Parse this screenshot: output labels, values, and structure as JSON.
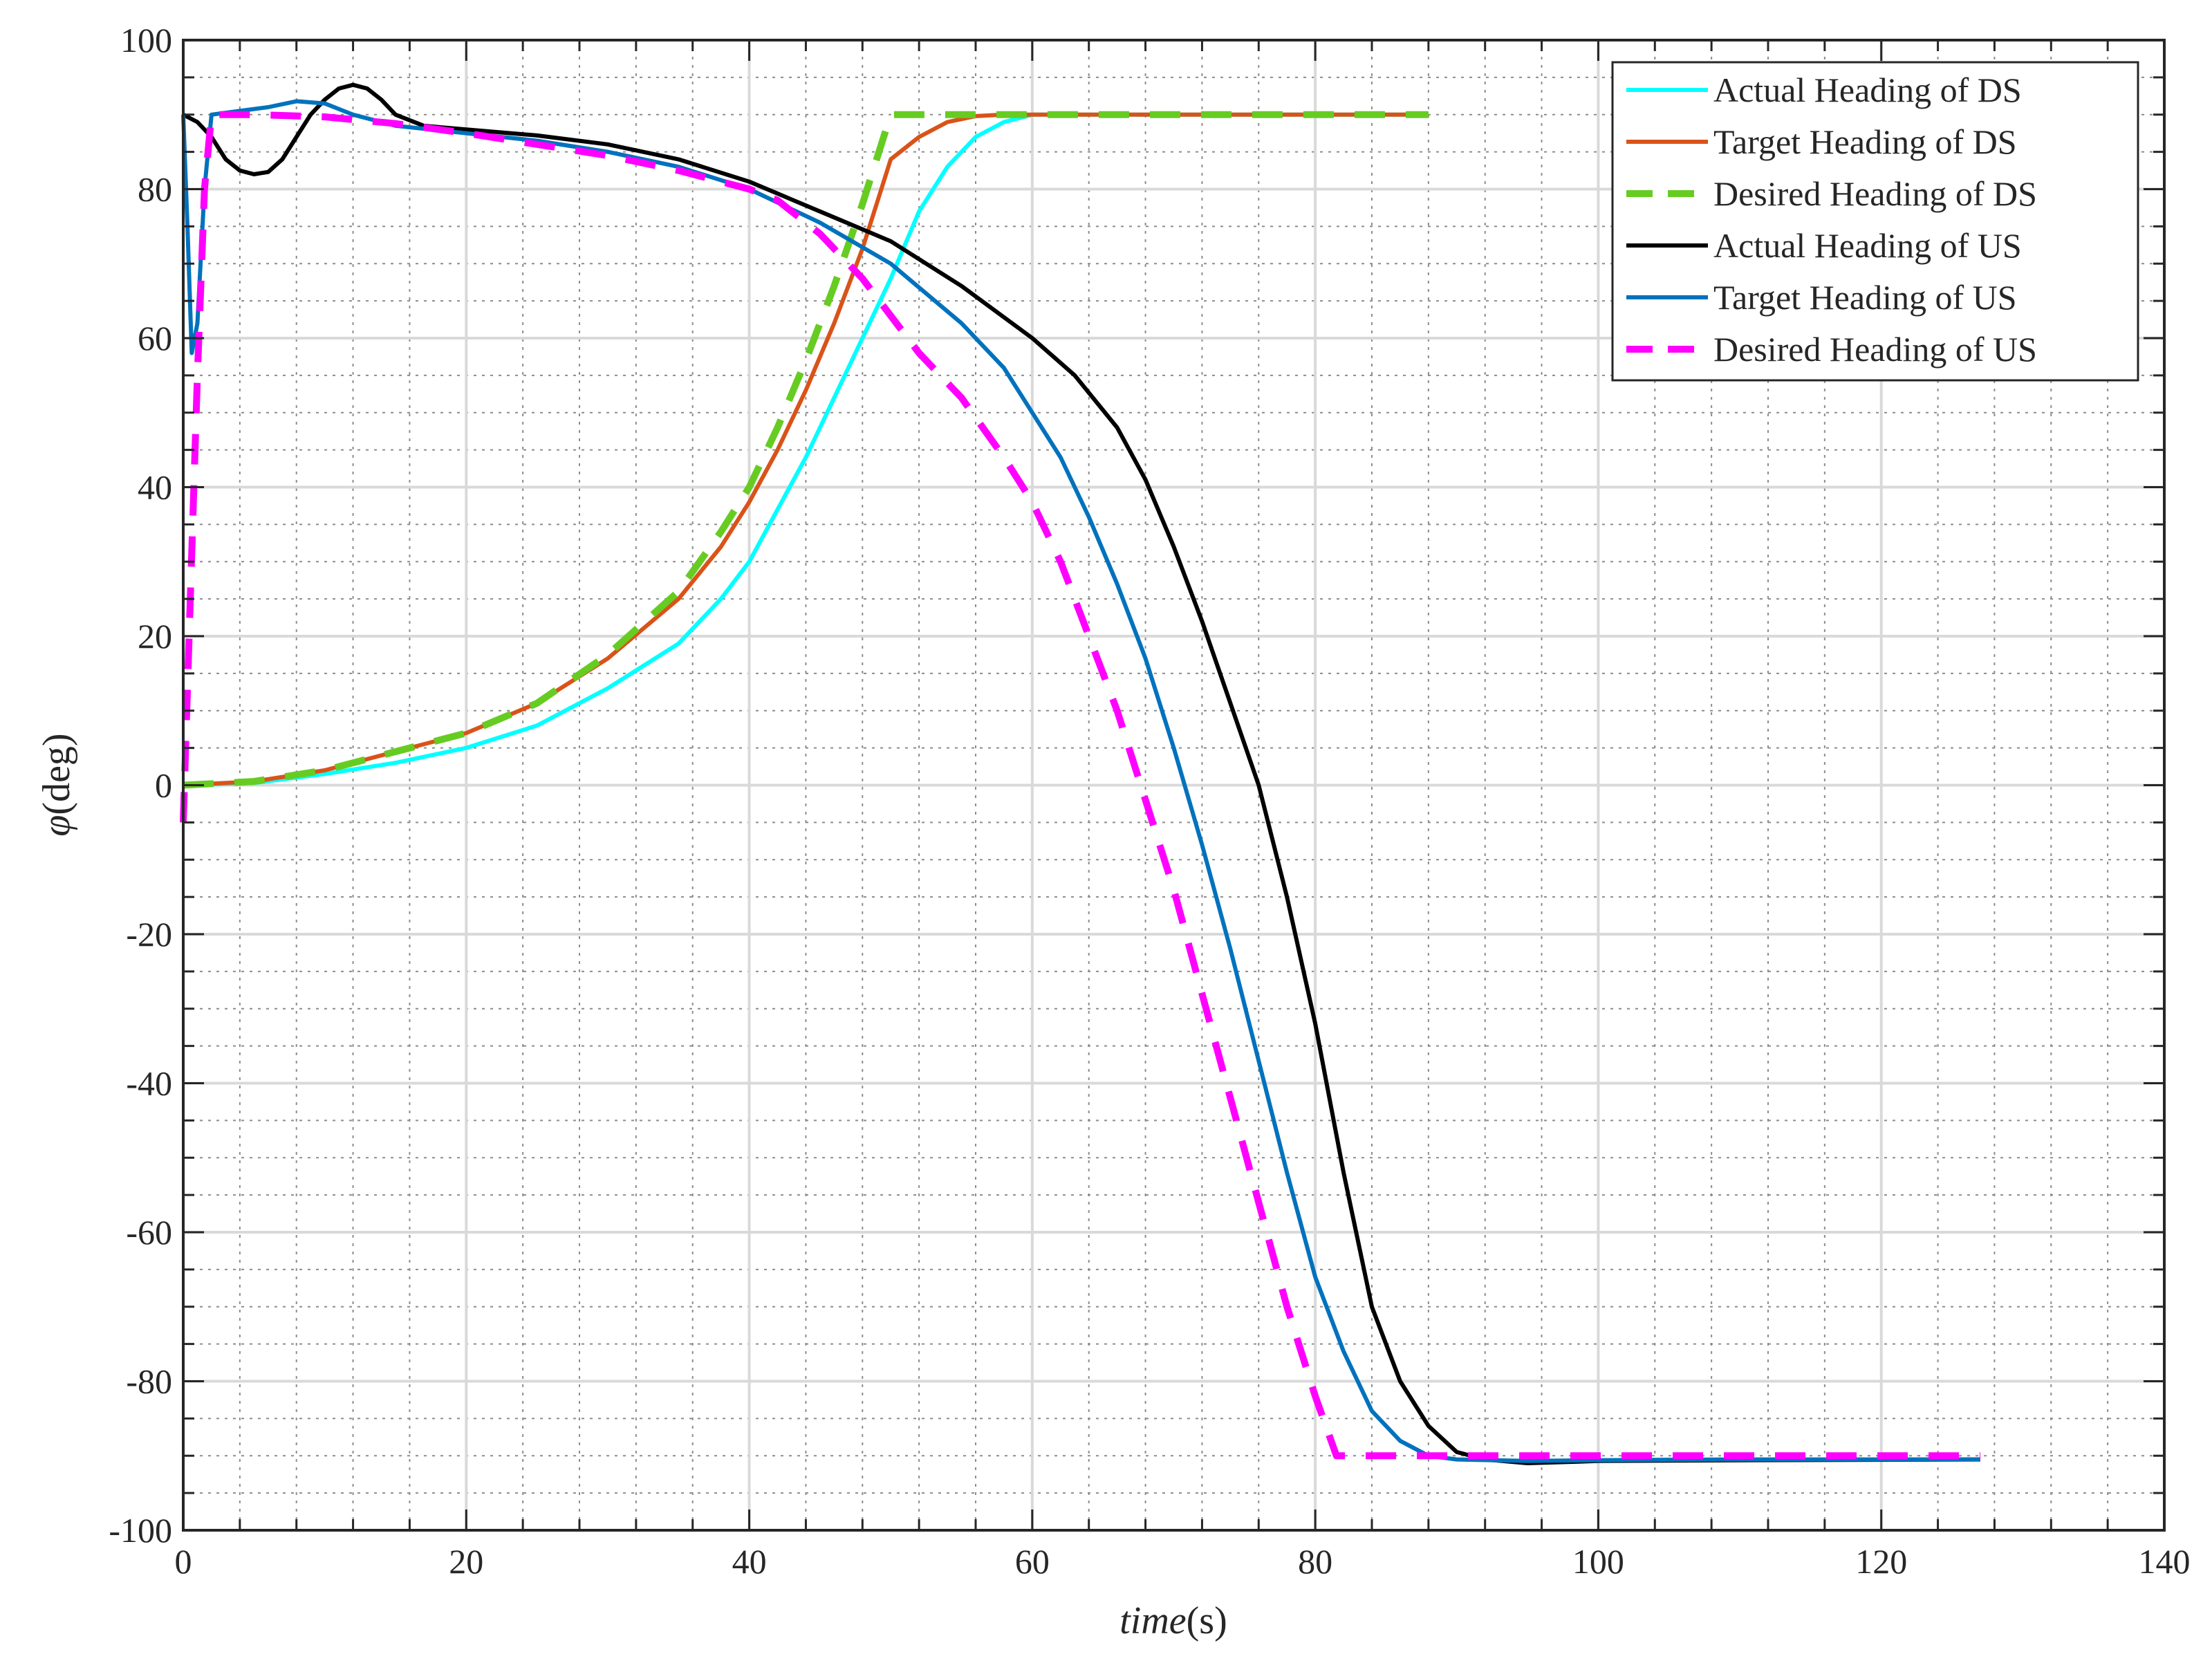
{
  "chart_data": {
    "type": "line",
    "title": "",
    "xlabel": {
      "italic": "time",
      "plain": "(s)"
    },
    "ylabel": {
      "symbol": "φ",
      "plain": "(deg)"
    },
    "xlim": [
      0,
      140
    ],
    "ylim": [
      -100,
      100
    ],
    "x_ticks": [
      0,
      20,
      40,
      60,
      80,
      100,
      120,
      140
    ],
    "y_ticks": [
      -100,
      -80,
      -60,
      -40,
      -20,
      0,
      20,
      40,
      60,
      80,
      100
    ],
    "x_tick_labels": [
      "0",
      "20",
      "40",
      "60",
      "80",
      "100",
      "120",
      "140"
    ],
    "y_tick_labels": [
      "-100",
      "-80",
      "-60",
      "-40",
      "-20",
      "0",
      "20",
      "40",
      "60",
      "80",
      "100"
    ],
    "grid": {
      "major": true,
      "minor": true
    },
    "legend_position": "top-right",
    "series": [
      {
        "name": "Actual Heading of DS",
        "color": "#00ffff",
        "style": "solid",
        "points": [
          [
            0,
            0
          ],
          [
            5,
            0.3
          ],
          [
            10,
            1.5
          ],
          [
            15,
            3
          ],
          [
            20,
            5
          ],
          [
            25,
            8
          ],
          [
            30,
            13
          ],
          [
            35,
            19
          ],
          [
            38,
            25
          ],
          [
            40,
            30
          ],
          [
            42,
            37
          ],
          [
            44,
            44
          ],
          [
            46,
            52
          ],
          [
            48,
            60
          ],
          [
            50,
            68
          ],
          [
            52,
            77
          ],
          [
            54,
            83
          ],
          [
            56,
            87
          ],
          [
            58,
            89
          ],
          [
            60,
            90
          ],
          [
            65,
            90
          ],
          [
            70,
            90
          ],
          [
            80,
            90
          ],
          [
            88,
            90
          ]
        ]
      },
      {
        "name": "Target Heading of DS",
        "color": "#d95319",
        "style": "solid",
        "points": [
          [
            0,
            0
          ],
          [
            5,
            0.5
          ],
          [
            10,
            2
          ],
          [
            15,
            4.5
          ],
          [
            20,
            7
          ],
          [
            25,
            11
          ],
          [
            30,
            17
          ],
          [
            35,
            25
          ],
          [
            38,
            32
          ],
          [
            40,
            38
          ],
          [
            42,
            45
          ],
          [
            44,
            53
          ],
          [
            46,
            62
          ],
          [
            48,
            72
          ],
          [
            50,
            84
          ],
          [
            52,
            87
          ],
          [
            54,
            89
          ],
          [
            56,
            89.8
          ],
          [
            58,
            90
          ],
          [
            60,
            90
          ],
          [
            70,
            90
          ],
          [
            80,
            90
          ],
          [
            88,
            90
          ]
        ]
      },
      {
        "name": "Desired Heading of DS",
        "color": "#66cc22",
        "style": "dashed",
        "points": [
          [
            0,
            0
          ],
          [
            5,
            0.5
          ],
          [
            10,
            2
          ],
          [
            15,
            4.5
          ],
          [
            20,
            7
          ],
          [
            25,
            11
          ],
          [
            30,
            17.5
          ],
          [
            35,
            26
          ],
          [
            38,
            34
          ],
          [
            40,
            40
          ],
          [
            42,
            48
          ],
          [
            44,
            57
          ],
          [
            46,
            67
          ],
          [
            48,
            78
          ],
          [
            50,
            90
          ],
          [
            55,
            90
          ],
          [
            60,
            90
          ],
          [
            70,
            90
          ],
          [
            80,
            90
          ],
          [
            88,
            90
          ]
        ]
      },
      {
        "name": "Actual Heading of US",
        "color": "#000000",
        "style": "solid",
        "points": [
          [
            0,
            90
          ],
          [
            1,
            89
          ],
          [
            2,
            87
          ],
          [
            3,
            84
          ],
          [
            4,
            82.5
          ],
          [
            5,
            82
          ],
          [
            6,
            82.3
          ],
          [
            7,
            84
          ],
          [
            8,
            87
          ],
          [
            9,
            90
          ],
          [
            10,
            92
          ],
          [
            11,
            93.5
          ],
          [
            12,
            94
          ],
          [
            13,
            93.5
          ],
          [
            14,
            92
          ],
          [
            15,
            90
          ],
          [
            17,
            88.5
          ],
          [
            20,
            88
          ],
          [
            25,
            87.2
          ],
          [
            30,
            86
          ],
          [
            35,
            84
          ],
          [
            40,
            81
          ],
          [
            45,
            77
          ],
          [
            50,
            73
          ],
          [
            55,
            67
          ],
          [
            60,
            60
          ],
          [
            63,
            55
          ],
          [
            66,
            48
          ],
          [
            68,
            41
          ],
          [
            70,
            32
          ],
          [
            72,
            22
          ],
          [
            74,
            11
          ],
          [
            76,
            0
          ],
          [
            78,
            -15
          ],
          [
            80,
            -32
          ],
          [
            82,
            -52
          ],
          [
            84,
            -70
          ],
          [
            86,
            -80
          ],
          [
            88,
            -86
          ],
          [
            90,
            -89.5
          ],
          [
            92,
            -90.5
          ],
          [
            95,
            -91
          ],
          [
            100,
            -90.7
          ],
          [
            110,
            -90.6
          ],
          [
            127,
            -90.5
          ]
        ]
      },
      {
        "name": "Target Heading of US",
        "color": "#0072bd",
        "style": "solid",
        "points": [
          [
            0,
            90
          ],
          [
            0.3,
            75
          ],
          [
            0.6,
            58
          ],
          [
            1,
            62
          ],
          [
            1.5,
            80
          ],
          [
            2,
            90
          ],
          [
            4,
            90.5
          ],
          [
            6,
            91
          ],
          [
            8,
            91.8
          ],
          [
            10,
            91.5
          ],
          [
            12,
            90
          ],
          [
            15,
            88.5
          ],
          [
            20,
            87.5
          ],
          [
            25,
            86.5
          ],
          [
            30,
            85
          ],
          [
            35,
            83
          ],
          [
            40,
            80
          ],
          [
            45,
            75.5
          ],
          [
            50,
            70
          ],
          [
            55,
            62
          ],
          [
            58,
            56
          ],
          [
            60,
            50
          ],
          [
            62,
            44
          ],
          [
            64,
            36
          ],
          [
            66,
            27
          ],
          [
            68,
            17
          ],
          [
            70,
            5
          ],
          [
            72,
            -8
          ],
          [
            74,
            -22
          ],
          [
            76,
            -37
          ],
          [
            78,
            -52
          ],
          [
            80,
            -66
          ],
          [
            82,
            -76
          ],
          [
            84,
            -84
          ],
          [
            86,
            -88
          ],
          [
            88,
            -90
          ],
          [
            90,
            -90.5
          ],
          [
            95,
            -90.7
          ],
          [
            100,
            -90.6
          ],
          [
            110,
            -90.5
          ],
          [
            127,
            -90.5
          ]
        ]
      },
      {
        "name": "Desired Heading of US",
        "color": "#ff00ff",
        "style": "dashed",
        "points": [
          [
            0,
            -5
          ],
          [
            0.5,
            25
          ],
          [
            1,
            55
          ],
          [
            1.5,
            80
          ],
          [
            2,
            90
          ],
          [
            5,
            90
          ],
          [
            10,
            89.7
          ],
          [
            15,
            88.8
          ],
          [
            20,
            87.5
          ],
          [
            25,
            86
          ],
          [
            30,
            84.5
          ],
          [
            35,
            82.5
          ],
          [
            40,
            80
          ],
          [
            42,
            78.5
          ],
          [
            45,
            74
          ],
          [
            48,
            68
          ],
          [
            50,
            63
          ],
          [
            52,
            58
          ],
          [
            55,
            52
          ],
          [
            58,
            44
          ],
          [
            60,
            38
          ],
          [
            62,
            30
          ],
          [
            64,
            20
          ],
          [
            66,
            10
          ],
          [
            68,
            -2
          ],
          [
            70,
            -14
          ],
          [
            72,
            -28
          ],
          [
            74,
            -42
          ],
          [
            76,
            -56
          ],
          [
            78,
            -70
          ],
          [
            80,
            -82
          ],
          [
            81.5,
            -90
          ],
          [
            85,
            -90
          ],
          [
            90,
            -90
          ],
          [
            100,
            -90
          ],
          [
            110,
            -90
          ],
          [
            127,
            -90
          ]
        ]
      }
    ]
  }
}
